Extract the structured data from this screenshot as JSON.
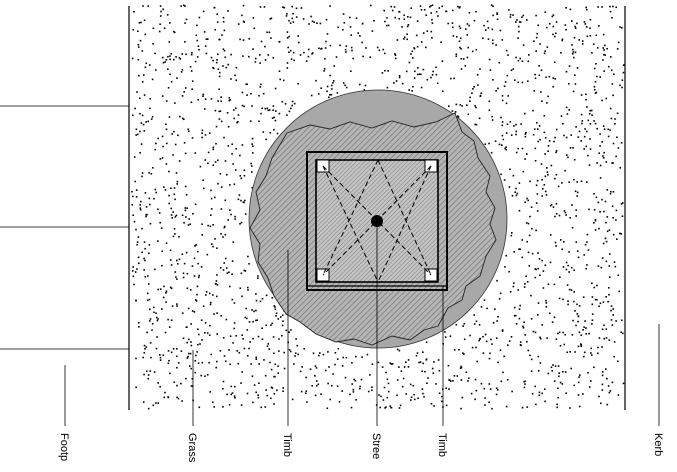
{
  "diagram": {
    "labels": {
      "footpath": "Footp",
      "grass": "Grass",
      "timber_1": "Timb",
      "street": "Stree",
      "timber_2": "Timb",
      "kerb": "Kerb"
    }
  },
  "colors": {
    "circle_fill": "#a9a9a9",
    "hatch": "#666666",
    "speckle": "#000000",
    "line": "#000000"
  }
}
